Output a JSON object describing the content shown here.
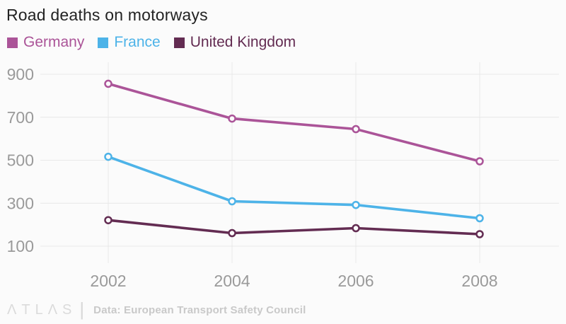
{
  "header": {
    "title": "Road deaths on motorways"
  },
  "colors": {
    "germany": "#ab5498",
    "france": "#4db3e8",
    "united_kingdom": "#632c52",
    "grid": "#e8e8e8",
    "axis_text": "#9a9a9a",
    "title_text": "#232323",
    "background": "#fbfbfb"
  },
  "chart_data": {
    "type": "line",
    "categories": [
      "2002",
      "2004",
      "2006",
      "2008"
    ],
    "series": [
      {
        "name": "Germany",
        "color": "#ab5498",
        "values": [
          856,
          694,
          645,
          495
        ]
      },
      {
        "name": "France",
        "color": "#4db3e8",
        "values": [
          516,
          309,
          292,
          230
        ]
      },
      {
        "name": "United Kingdom",
        "color": "#632c52",
        "values": [
          221,
          161,
          184,
          156
        ]
      }
    ],
    "title": "Road deaths on motorways",
    "xlabel": "",
    "ylabel": "",
    "yticks": [
      900,
      700,
      500,
      300,
      100
    ],
    "ylim": [
      20,
      955
    ],
    "grid": true,
    "legend_position": "top-left",
    "marker": "open-circle"
  },
  "footer": {
    "logo": "ΛTLΛS",
    "divider": "|",
    "source": "Data: European Transport Safety Council"
  }
}
